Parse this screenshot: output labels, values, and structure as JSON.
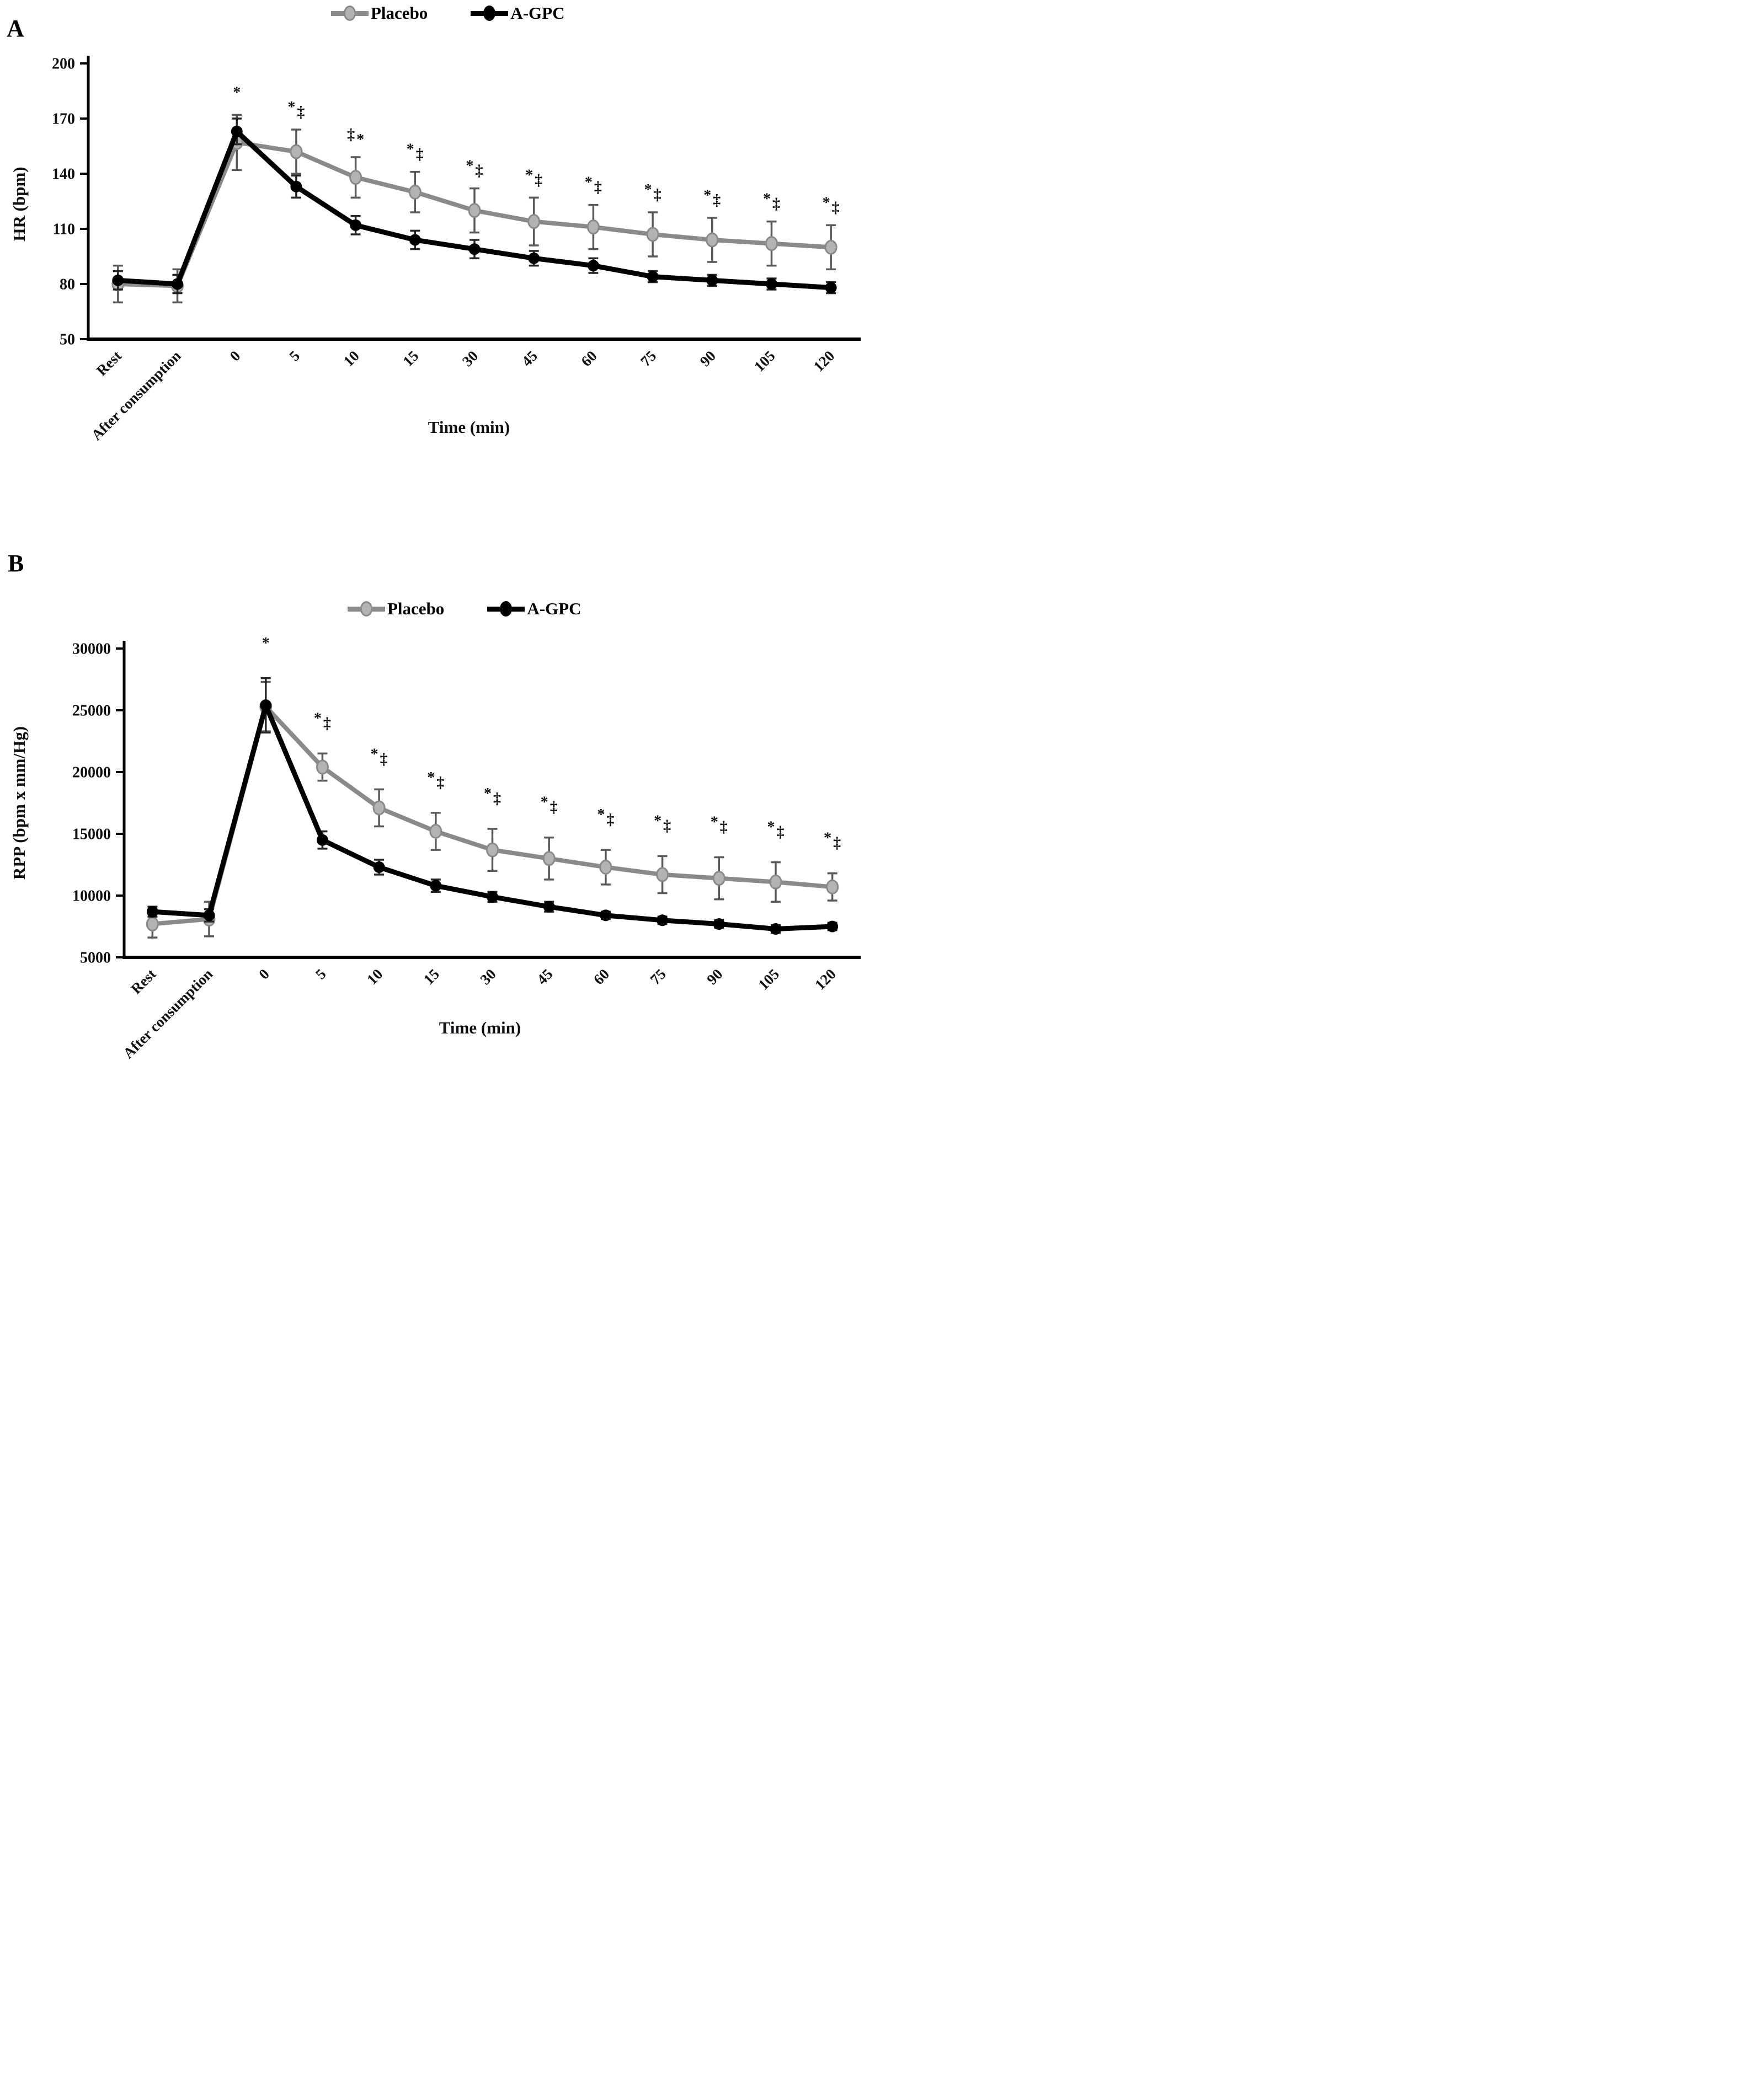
{
  "panel_letters": {
    "a": "A",
    "b": "B"
  },
  "colors": {
    "placebo_line": "#8a8a8a",
    "placebo_marker_fill": "#b3b3b3",
    "agpc_line": "#000000",
    "error_bar_gray": "#595959",
    "error_bar_black": "#262626",
    "axis": "#000000",
    "text": "#111111"
  },
  "chart_data": [
    {
      "id": "panel_a",
      "panel_label": "A",
      "type": "line",
      "xlabel": "Time (min)",
      "ylabel": "HR (bpm)",
      "categories": [
        "Rest",
        "After consumption",
        "0",
        "5",
        "10",
        "15",
        "30",
        "45",
        "60",
        "75",
        "90",
        "105",
        "120"
      ],
      "y_ticks": [
        50,
        80,
        110,
        140,
        170,
        200
      ],
      "ylim": [
        50,
        200
      ],
      "grid": false,
      "legend_position": "top-center",
      "series": [
        {
          "name": "Placebo",
          "color": "#8a8a8a",
          "marker_fill": "#b3b3b3",
          "values": [
            80,
            79,
            157,
            152,
            138,
            130,
            120,
            114,
            111,
            107,
            104,
            102,
            100
          ],
          "errors": [
            10,
            9,
            15,
            12,
            11,
            11,
            12,
            13,
            12,
            12,
            12,
            12,
            12
          ]
        },
        {
          "name": "A-GPC",
          "color": "#000000",
          "marker_fill": "#000000",
          "values": [
            82,
            80,
            163,
            133,
            112,
            104,
            99,
            94,
            90,
            84,
            82,
            80,
            78
          ],
          "errors": [
            5,
            5,
            7,
            6,
            5,
            5,
            5,
            4,
            4,
            3,
            3,
            3,
            3
          ]
        }
      ],
      "annotations": [
        "",
        "",
        "*",
        "*‡",
        "‡*",
        "*‡",
        "*‡",
        "*‡",
        "*‡",
        "*‡",
        "*‡",
        "*‡",
        "*‡"
      ]
    },
    {
      "id": "panel_b",
      "panel_label": "B",
      "type": "line",
      "xlabel": "Time (min)",
      "ylabel": "RPP (bpm x mm/Hg)",
      "categories": [
        "Rest",
        "After consumption",
        "0",
        "5",
        "10",
        "15",
        "30",
        "45",
        "60",
        "75",
        "90",
        "105",
        "120"
      ],
      "y_ticks": [
        5000,
        10000,
        15000,
        20000,
        25000,
        30000
      ],
      "ylim": [
        5000,
        30000
      ],
      "grid": false,
      "legend_position": "top-center",
      "series": [
        {
          "name": "Placebo",
          "color": "#8a8a8a",
          "marker_fill": "#b3b3b3",
          "values": [
            7700,
            8100,
            25300,
            20400,
            17100,
            15200,
            13700,
            13000,
            12300,
            11700,
            11400,
            11100,
            10700
          ],
          "errors": [
            1100,
            1400,
            2000,
            1100,
            1500,
            1500,
            1700,
            1700,
            1400,
            1500,
            1700,
            1600,
            1100
          ]
        },
        {
          "name": "A-GPC",
          "color": "#000000",
          "marker_fill": "#000000",
          "values": [
            8700,
            8400,
            25400,
            14500,
            12300,
            10800,
            9900,
            9100,
            8400,
            8000,
            7700,
            7300,
            7500
          ],
          "errors": [
            400,
            500,
            2200,
            700,
            600,
            500,
            400,
            400,
            300,
            300,
            300,
            300,
            300
          ]
        }
      ],
      "annotations": [
        "",
        "",
        "*",
        "*‡",
        "*‡",
        "*‡",
        "*‡",
        "*‡",
        "*‡",
        "*‡",
        "*‡",
        "*‡",
        "*‡"
      ]
    }
  ]
}
